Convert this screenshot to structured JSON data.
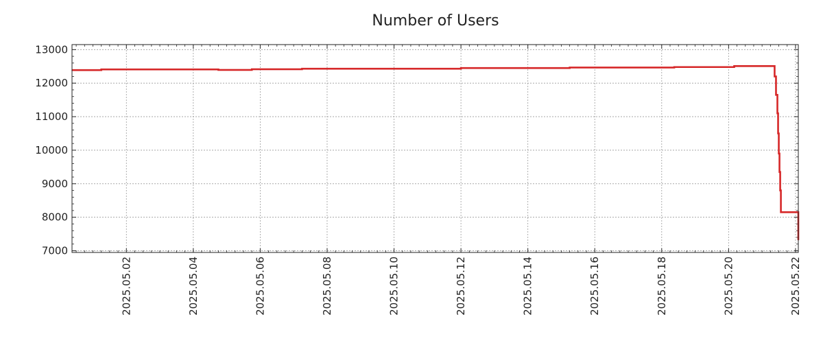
{
  "chart_data": {
    "type": "line",
    "title": "Number of Users",
    "xlabel": "",
    "ylabel": "",
    "xlim": [
      "2025-05-00 09:00",
      "2025-05-22 02:00"
    ],
    "ylim": [
      6950,
      13150
    ],
    "grid": true,
    "line_color": "#d62728",
    "y_ticks": [
      7000,
      8000,
      9000,
      10000,
      11000,
      12000,
      13000
    ],
    "y_tick_labels": [
      "7000",
      "8000",
      "9000",
      "10000",
      "11000",
      "12000",
      "13000"
    ],
    "x_ticks": [
      "2025.05.02",
      "2025.05.04",
      "2025.05.06",
      "2025.05.08",
      "2025.05.10",
      "2025.05.12",
      "2025.05.14",
      "2025.05.16",
      "2025.05.18",
      "2025.05.20",
      "2025.05.22"
    ],
    "series": [
      {
        "name": "",
        "x": [
          "2025-05-00 09:00",
          "2025-05-01 06:00",
          "2025-05-04 18:00",
          "2025-05-05 18:00",
          "2025-05-07 06:00",
          "2025-05-12 00:00",
          "2025-05-15 06:00",
          "2025-05-18 09:00",
          "2025-05-20 04:00",
          "2025-05-21 08:00",
          "2025-05-21 09:00",
          "2025-05-21 10:00",
          "2025-05-21 11:00",
          "2025-05-21 11:30",
          "2025-05-21 12:00",
          "2025-05-21 12:30",
          "2025-05-21 13:00",
          "2025-05-21 13:30",
          "2025-05-22 02:00"
        ],
        "y": [
          12390,
          12410,
          12395,
          12415,
          12430,
          12450,
          12465,
          12480,
          12510,
          12510,
          12200,
          11650,
          11100,
          10500,
          9900,
          9350,
          8800,
          8150,
          7320
        ]
      }
    ]
  }
}
